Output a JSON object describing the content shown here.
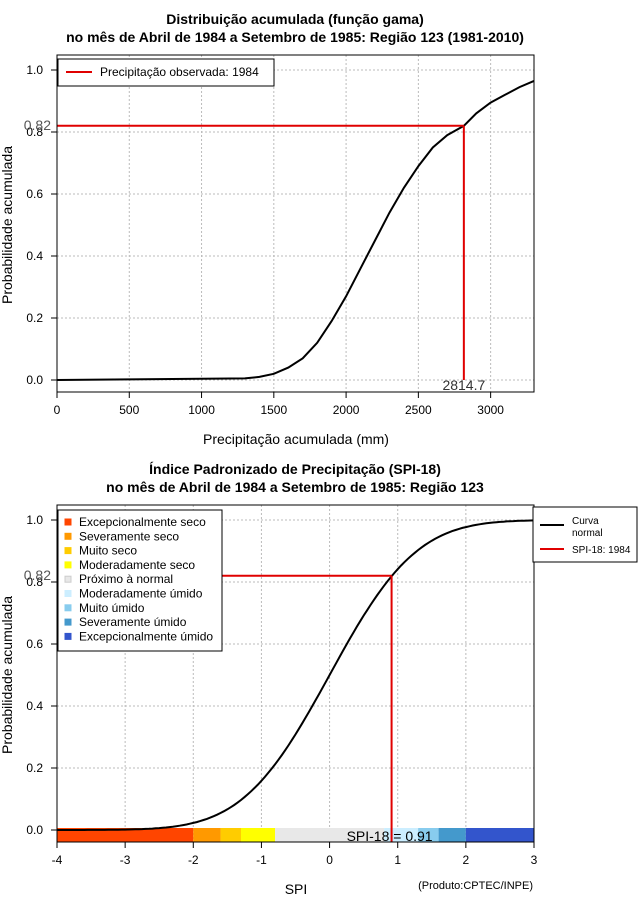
{
  "chart_data": [
    {
      "type": "line",
      "title_line1": "Distribuição acumulada (função gama)",
      "title_line2": "no mês de Abril de 1984 a Setembro de 1985: Região 123 (1981-2010)",
      "xlabel": "Precipitação acumulada (mm)",
      "ylabel": "Probabilidade acumulada",
      "xlim": [
        0,
        3300
      ],
      "ylim": [
        0,
        1
      ],
      "xticks": [
        0,
        500,
        1000,
        1500,
        2000,
        2500,
        3000
      ],
      "yticks": [
        0.0,
        0.2,
        0.4,
        0.6,
        0.8,
        1.0
      ],
      "ytick_labels": [
        "0.0",
        "0.2",
        "0.4",
        "0.6",
        "0.8",
        "1.0"
      ],
      "grid": true,
      "legend_position": "top-left",
      "legend": [
        "Precipitação observada: 1984"
      ],
      "curve": {
        "x": [
          0,
          500,
          1000,
          1300,
          1400,
          1500,
          1600,
          1700,
          1800,
          1900,
          2000,
          2100,
          2200,
          2300,
          2400,
          2500,
          2600,
          2700,
          2814.7,
          2900,
          3000,
          3100,
          3200,
          3300
        ],
        "y": [
          0,
          0.002,
          0.004,
          0.005,
          0.01,
          0.02,
          0.04,
          0.07,
          0.12,
          0.19,
          0.27,
          0.36,
          0.45,
          0.54,
          0.62,
          0.69,
          0.75,
          0.79,
          0.82,
          0.86,
          0.895,
          0.92,
          0.945,
          0.965
        ]
      },
      "observed": {
        "x": 2814.7,
        "y": 0.82,
        "x_label": "2814.7",
        "y_label": "0.82"
      }
    },
    {
      "type": "line",
      "title_line1": "Índice Padronizado de Precipitação (SPI-18)",
      "title_line2": "no mês de Abril de 1984 a Setembro de 1985: Região 123",
      "xlabel": "SPI",
      "ylabel": "Probabilidade acumulada",
      "xlim": [
        -4,
        3
      ],
      "ylim": [
        0,
        1
      ],
      "xticks": [
        -4,
        -3,
        -2,
        -1,
        0,
        1,
        2,
        3
      ],
      "yticks": [
        0.0,
        0.2,
        0.4,
        0.6,
        0.8,
        1.0
      ],
      "ytick_labels": [
        "0.0",
        "0.2",
        "0.4",
        "0.6",
        "0.8",
        "1.0"
      ],
      "grid": true,
      "legend_position": "top-right",
      "legend": [
        "Curva\nnormal",
        "SPI-18: 1984"
      ],
      "categories_legend_position": "top-left",
      "categories": [
        {
          "label": "Excepcionalmente seco",
          "color": "#ff4500",
          "range": [
            -4,
            -2
          ]
        },
        {
          "label": "Severamente seco",
          "color": "#ff9900",
          "range": [
            -2,
            -1.6
          ]
        },
        {
          "label": "Muito seco",
          "color": "#ffcc00",
          "range": [
            -1.6,
            -1.3
          ]
        },
        {
          "label": "Moderadamente seco",
          "color": "#ffff00",
          "range": [
            -1.3,
            -0.8
          ]
        },
        {
          "label": "Próximo à normal",
          "color": "#e8e8e8",
          "range": [
            -0.8,
            0.8
          ]
        },
        {
          "label": "Moderadamente úmido",
          "color": "#cceeff",
          "range": [
            0.8,
            1.3
          ]
        },
        {
          "label": "Muito úmido",
          "color": "#88ccee",
          "range": [
            1.3,
            1.6
          ]
        },
        {
          "label": "Severamente úmido",
          "color": "#4499cc",
          "range": [
            1.6,
            2.0
          ]
        },
        {
          "label": "Excepcionalmente úmido",
          "color": "#3355cc",
          "range": [
            2.0,
            3.0
          ]
        }
      ],
      "observed": {
        "x": 0.91,
        "y": 0.82,
        "spi_label": "SPI-18 = 0.91",
        "y_label": "0.82"
      },
      "credit": "(Produto:CPTEC/INPE)"
    }
  ]
}
